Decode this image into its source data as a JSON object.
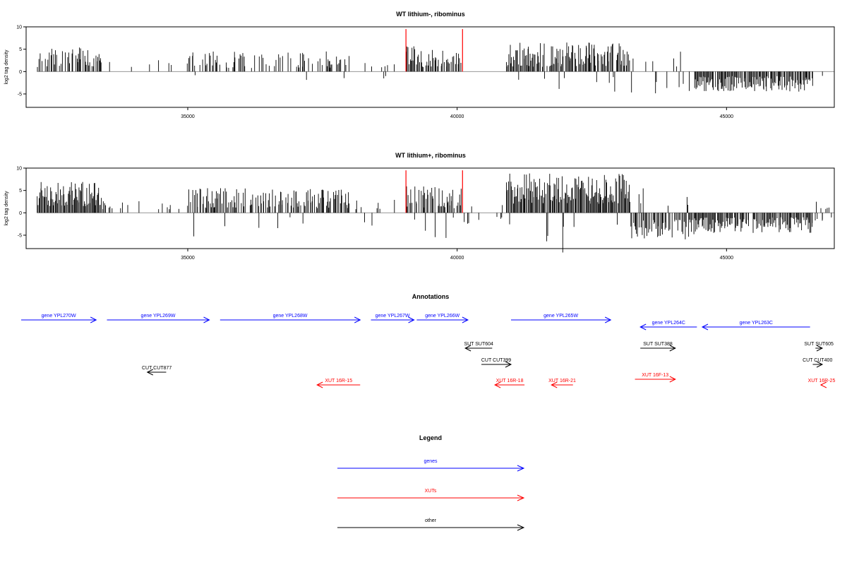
{
  "chart_data": [
    {
      "type": "bar",
      "title": "WT lithium-, ribominus",
      "ylabel": "log2 tag density",
      "xlim": [
        32000,
        47000
      ],
      "ylim": [
        -8,
        10
      ],
      "x_ticks": [
        35000,
        40000,
        45000
      ],
      "y_ticks": [
        -5,
        0,
        5,
        10
      ],
      "marker_lines_x": [
        39050,
        40100
      ],
      "marker_color": "#ff0000",
      "bar_color": "#000000",
      "segments": [
        {
          "x0": 32200,
          "x1": 33400,
          "ymin": 1.0,
          "ymax": 5.5,
          "density": 0.6,
          "pos_frac": 1.0
        },
        {
          "x0": 33400,
          "x1": 35000,
          "ymin": 0.8,
          "ymax": 3.0,
          "density": 0.08,
          "pos_frac": 1.0
        },
        {
          "x0": 35000,
          "x1": 38000,
          "ymin": 0.8,
          "ymax": 4.5,
          "density": 0.45,
          "pos_frac": 0.97
        },
        {
          "x0": 38000,
          "x1": 39050,
          "ymin": 0.8,
          "ymax": 2.5,
          "density": 0.12,
          "pos_frac": 0.85
        },
        {
          "x0": 39050,
          "x1": 40100,
          "ymin": 1.0,
          "ymax": 6.0,
          "density": 0.7,
          "pos_frac": 1.0
        },
        {
          "x0": 40400,
          "x1": 40900,
          "ymin": 0.5,
          "ymax": 1.0,
          "density": 0.02,
          "pos_frac": 1.0
        },
        {
          "x0": 40900,
          "x1": 43200,
          "ymin": 1.0,
          "ymax": 6.5,
          "density": 0.8,
          "pos_frac": 0.96
        },
        {
          "x0": 43200,
          "x1": 44400,
          "ymin": -5.0,
          "ymax": -1.0,
          "density": 0.1,
          "pos_frac": 0.15
        },
        {
          "x0": 44400,
          "x1": 46600,
          "ymin": -4.5,
          "ymax": -1.0,
          "density": 0.85,
          "pos_frac": 0.0
        },
        {
          "x0": 46600,
          "x1": 47000,
          "ymin": 0.5,
          "ymax": 2.5,
          "density": 0.1,
          "pos_frac": 0.7
        }
      ]
    },
    {
      "type": "bar",
      "title": "WT lithium+, ribominus",
      "ylabel": "log2 tag density",
      "xlim": [
        32000,
        47000
      ],
      "ylim": [
        -8,
        10
      ],
      "x_ticks": [
        35000,
        40000,
        45000
      ],
      "y_ticks": [
        -5,
        0,
        5,
        10
      ],
      "marker_lines_x": [
        39050,
        40100
      ],
      "marker_color": "#ff0000",
      "bar_color": "#000000",
      "segments": [
        {
          "x0": 32200,
          "x1": 33400,
          "ymin": 1.5,
          "ymax": 7.0,
          "density": 1.0,
          "pos_frac": 1.0
        },
        {
          "x0": 33400,
          "x1": 35000,
          "ymin": 0.8,
          "ymax": 3.0,
          "density": 0.15,
          "pos_frac": 0.95
        },
        {
          "x0": 35000,
          "x1": 38000,
          "ymin": 1.0,
          "ymax": 5.5,
          "density": 0.65,
          "pos_frac": 0.95
        },
        {
          "x0": 38000,
          "x1": 39050,
          "ymin": 0.8,
          "ymax": 3.0,
          "density": 0.15,
          "pos_frac": 0.75
        },
        {
          "x0": 39050,
          "x1": 40100,
          "ymin": 1.0,
          "ymax": 6.0,
          "density": 0.75,
          "pos_frac": 0.95
        },
        {
          "x0": 40100,
          "x1": 40900,
          "ymin": -3.0,
          "ymax": 1.5,
          "density": 0.15,
          "pos_frac": 0.3
        },
        {
          "x0": 40900,
          "x1": 43200,
          "ymin": 2.0,
          "ymax": 9.0,
          "density": 1.0,
          "pos_frac": 0.97
        },
        {
          "x0": 43200,
          "x1": 44400,
          "ymin": -6.0,
          "ymax": -1.5,
          "density": 0.75,
          "pos_frac": 0.05
        },
        {
          "x0": 44400,
          "x1": 46600,
          "ymin": -4.5,
          "ymax": -1.0,
          "density": 0.9,
          "pos_frac": 0.0
        },
        {
          "x0": 46600,
          "x1": 47000,
          "ymin": -2.5,
          "ymax": 3.0,
          "density": 0.45,
          "pos_frac": 0.45
        }
      ]
    }
  ],
  "annotations": {
    "title": "Annotations",
    "features": [
      {
        "label": "gene YPL270W",
        "start": 31900,
        "end": 33300,
        "lane": 0,
        "strand": "+",
        "color": "#0000ff"
      },
      {
        "label": "gene YPL269W",
        "start": 33500,
        "end": 35400,
        "lane": 0,
        "strand": "+",
        "color": "#0000ff"
      },
      {
        "label": "gene YPL268W",
        "start": 35600,
        "end": 38200,
        "lane": 0,
        "strand": "+",
        "color": "#0000ff"
      },
      {
        "label": "gene YPL267W",
        "start": 38400,
        "end": 39200,
        "lane": 0,
        "strand": "+",
        "color": "#0000ff"
      },
      {
        "label": "gene YPL266W",
        "start": 39250,
        "end": 40200,
        "lane": 0,
        "strand": "+",
        "color": "#0000ff"
      },
      {
        "label": "gene YPL265W",
        "start": 41000,
        "end": 42850,
        "lane": 0,
        "strand": "+",
        "color": "#0000ff"
      },
      {
        "label": "gene YPL264C",
        "start": 43400,
        "end": 44450,
        "lane": 1,
        "strand": "-",
        "color": "#0000ff"
      },
      {
        "label": "gene YPL263C",
        "start": 44550,
        "end": 46550,
        "lane": 1,
        "strand": "-",
        "color": "#0000ff"
      },
      {
        "label": "SUT SUT604",
        "start": 40150,
        "end": 40650,
        "lane": 2,
        "strand": "-",
        "color": "#000000"
      },
      {
        "label": "SUT SUT388",
        "start": 43400,
        "end": 44050,
        "lane": 2,
        "strand": "+",
        "color": "#000000"
      },
      {
        "label": "SUT SUT605",
        "start": 46650,
        "end": 47300,
        "lane": 2,
        "strand": "+",
        "color": "#000000"
      },
      {
        "label": "CUT CUT399",
        "start": 40450,
        "end": 41000,
        "lane": 3,
        "strand": "+",
        "color": "#000000"
      },
      {
        "label": "CUT CUT400",
        "start": 46600,
        "end": 47050,
        "lane": 3,
        "strand": "+",
        "color": "#000000"
      },
      {
        "label": "CUT CUT877",
        "start": 34250,
        "end": 34600,
        "lane": 4,
        "strand": "-",
        "color": "#000000"
      },
      {
        "label": "XUT 16R-15",
        "start": 37400,
        "end": 38200,
        "lane": 5,
        "strand": "-",
        "color": "#ff0000"
      },
      {
        "label": "XUT 16R-18",
        "start": 40700,
        "end": 41250,
        "lane": 5,
        "strand": "-",
        "color": "#ff0000"
      },
      {
        "label": "XUT 16R-21",
        "start": 41750,
        "end": 42150,
        "lane": 5,
        "strand": "-",
        "color": "#ff0000"
      },
      {
        "label": "XUT 16F-13",
        "start": 43300,
        "end": 44050,
        "lane": 6,
        "strand": "+",
        "color": "#ff0000"
      },
      {
        "label": "XUT 16R-25",
        "start": 46750,
        "end": 47200,
        "lane": 5,
        "strand": "-",
        "color": "#ff0000"
      }
    ]
  },
  "legend": {
    "title": "Legend",
    "items": [
      {
        "label": "genes",
        "color": "#0000ff"
      },
      {
        "label": "XUTs",
        "color": "#ff0000"
      },
      {
        "label": "other",
        "color": "#000000"
      }
    ]
  }
}
